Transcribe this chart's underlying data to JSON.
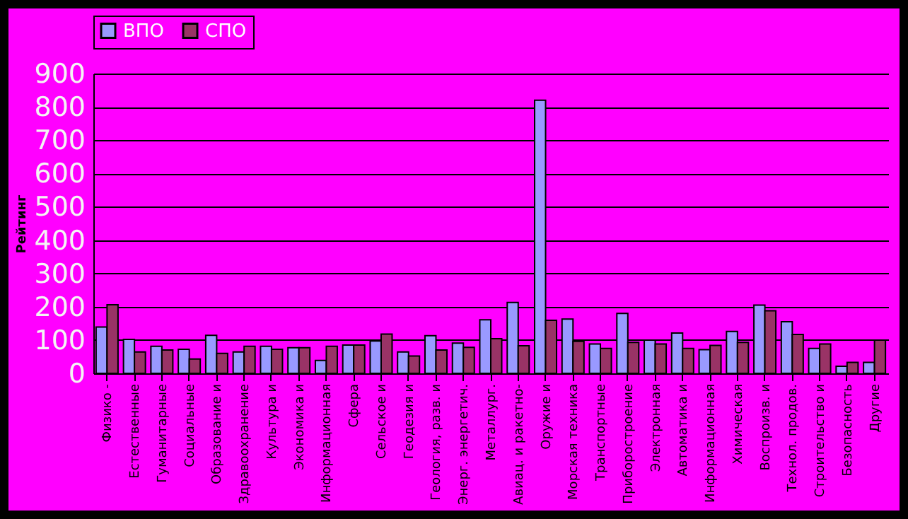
{
  "chart_data": {
    "type": "bar",
    "ylabel": "Рейтинг",
    "categories": [
      "Физико -",
      "Естественные",
      "Гуманитарные",
      "Социальные",
      "Образование и",
      "Здравоохранение",
      "Культура и",
      "Экономика и",
      "Информационная",
      "Сфера",
      "Сельское и",
      "Геодезия и",
      "Геология, разв. и",
      "Энерг. энергетич.",
      "Металлург.",
      "Авиац. и ракетно-",
      "Оружие и",
      "Морская техника",
      "Транспортные",
      "Приборостроение",
      "Электронная",
      "Автоматика и",
      "Информационная",
      "Химическая",
      "Воспроизв. и",
      "Технол. продов.",
      "Строительство и",
      "Безопасность",
      "Другие"
    ],
    "series": [
      {
        "name": "ВПО",
        "color": "#9999ff",
        "values": [
          139,
          102,
          81,
          72,
          114,
          64,
          81,
          77,
          39,
          85,
          97,
          64,
          113,
          91,
          161,
          213,
          820,
          163,
          88,
          180,
          100,
          121,
          71,
          126,
          205,
          155,
          75,
          21,
          33
        ]
      },
      {
        "name": "СПО",
        "color": "#993366",
        "values": [
          206,
          64,
          70,
          43,
          60,
          81,
          72,
          77,
          81,
          85,
          118,
          52,
          70,
          78,
          104,
          83,
          159,
          96,
          75,
          93,
          88,
          75,
          84,
          93,
          188,
          117,
          88,
          33,
          100
        ]
      }
    ],
    "ylim": [
      0,
      900
    ],
    "yticks": [
      0,
      100,
      200,
      300,
      400,
      500,
      600,
      700,
      800,
      900
    ],
    "grid": "y",
    "legend": "top"
  }
}
